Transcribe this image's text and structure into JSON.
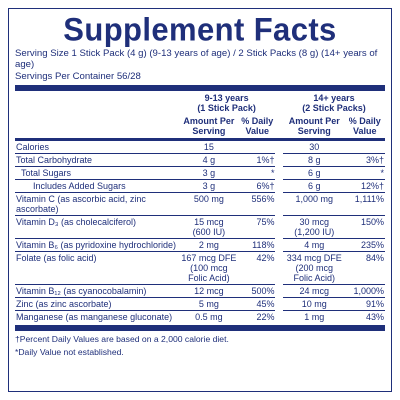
{
  "title": "Supplement Facts",
  "serving_size": "Serving Size 1 Stick Pack (4 g) (9-13 years of age) / 2 Stick Packs (8 g) (14+ years of age)",
  "servings_per_container": "Servings Per Container 56/28",
  "group1": {
    "title": "9-13 years",
    "subtitle": "(1 Stick Pack)"
  },
  "group2": {
    "title": "14+ years",
    "subtitle": "(2 Stick Packs)"
  },
  "col_amount": "Amount Per Serving",
  "col_dv": "% Daily Value",
  "rows": [
    {
      "name": "Calories",
      "a1": "15",
      "d1": "",
      "a2": "30",
      "d2": ""
    },
    {
      "name": "Total Carbohydrate",
      "a1": "4 g",
      "d1": "1%†",
      "a2": "8 g",
      "d2": "3%†"
    },
    {
      "name": "Total Sugars",
      "a1": "3 g",
      "d1": "*",
      "a2": "6 g",
      "d2": "*"
    },
    {
      "name": "Includes Added Sugars",
      "a1": "3 g",
      "d1": "6%†",
      "a2": "6 g",
      "d2": "12%†"
    },
    {
      "name": "Vitamin C (as ascorbic acid, zinc ascorbate)",
      "a1": "500 mg",
      "d1": "556%",
      "a2": "1,000 mg",
      "d2": "1,111%"
    },
    {
      "name": "Vitamin D₃ (as cholecalciferol)",
      "a1": "15 mcg\n(600 IU)",
      "d1": "75%",
      "a2": "30 mcg\n(1,200 IU)",
      "d2": "150%"
    },
    {
      "name": "Vitamin B₆ (as pyridoxine hydrochloride)",
      "a1": "2 mg",
      "d1": "118%",
      "a2": "4 mg",
      "d2": "235%"
    },
    {
      "name": "Folate (as folic acid)",
      "a1": "167 mcg DFE\n(100 mcg\nFolic Acid)",
      "d1": "42%",
      "a2": "334 mcg DFE\n(200 mcg\nFolic Acid)",
      "d2": "84%"
    },
    {
      "name": "Vitamin B₁₂ (as cyanocobalamin)",
      "a1": "12 mcg",
      "d1": "500%",
      "a2": "24 mcg",
      "d2": "1,000%"
    },
    {
      "name": "Zinc (as zinc ascorbate)",
      "a1": "5 mg",
      "d1": "45%",
      "a2": "10 mg",
      "d2": "91%"
    },
    {
      "name": "Manganese (as manganese gluconate)",
      "a1": "0.5 mg",
      "d1": "22%",
      "a2": "1 mg",
      "d2": "43%"
    }
  ],
  "footnote1": "†Percent Daily Values are based on a 2,000 calorie diet.",
  "footnote2": "*Daily Value not established."
}
